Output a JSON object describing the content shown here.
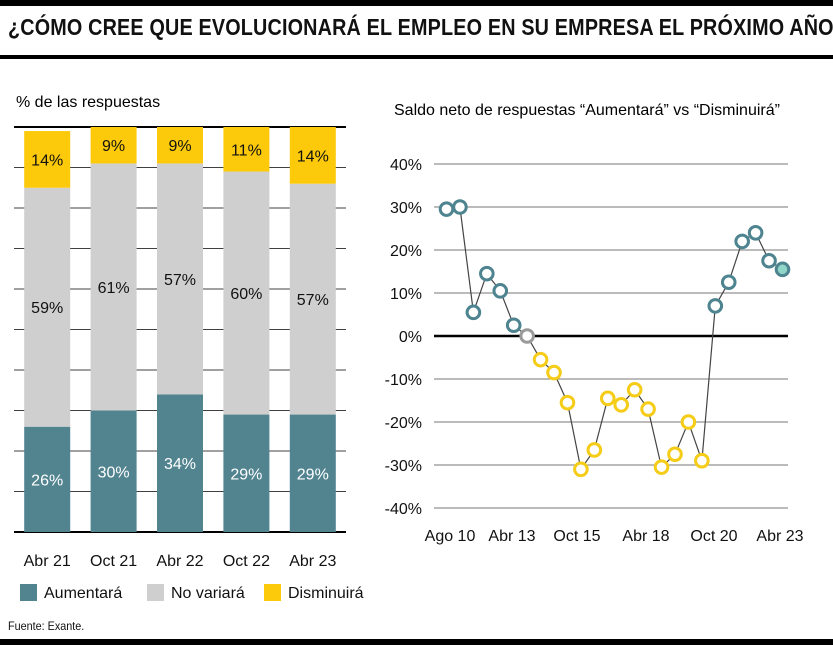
{
  "title": "¿CÓMO CREE QUE EVOLUCIONARÁ EL EMPLEO EN SU EMPRESA EL PRÓXIMO AÑO?",
  "source": "Fuente: Exante.",
  "colors": {
    "aumentara": "#528490",
    "no_variara": "#cfcfcf",
    "disminuira": "#fcca0a",
    "positive_marker": "#4e8490",
    "negative_marker": "#f5cc17",
    "neutral_marker": "#9a9a9a",
    "last_point_fill": "#8fd6c8"
  },
  "chart_data": [
    {
      "type": "bar",
      "stacked": true,
      "title": "% de las respuestas",
      "categories": [
        "Abr 21",
        "Oct 21",
        "Abr 22",
        "Oct 22",
        "Abr 23"
      ],
      "series": [
        {
          "name": "Aumentará",
          "values": [
            26,
            30,
            34,
            29,
            29
          ],
          "labels": [
            "26%",
            "30%",
            "34%",
            "29%",
            "29%"
          ]
        },
        {
          "name": "No variará",
          "values": [
            59,
            61,
            57,
            60,
            57
          ],
          "labels": [
            "59%",
            "61%",
            "57%",
            "60%",
            "57%"
          ]
        },
        {
          "name": "Disminuirá",
          "values": [
            14,
            9,
            9,
            11,
            14
          ],
          "labels": [
            "14%",
            "9%",
            "9%",
            "11%",
            "14%"
          ]
        }
      ],
      "ylim": [
        0,
        100
      ],
      "legend": [
        "Aumentará",
        "No variará",
        "Disminuirá"
      ]
    },
    {
      "type": "line",
      "title": "Saldo neto de respuestas “Aumentará” vs “Disminuirá”",
      "xlabels": [
        "Ago 10",
        "Abr 13",
        "Oct 15",
        "Abr 18",
        "Oct 20",
        "Abr 23"
      ],
      "yticks": [
        "40%",
        "30%",
        "20%",
        "10%",
        "0%",
        "-10%",
        "-20%",
        "-30%",
        "-40%"
      ],
      "ylim": [
        -40,
        40
      ],
      "values": [
        29.5,
        30,
        5.5,
        14.5,
        10.5,
        2.5,
        0,
        -5.5,
        -8.5,
        -15.5,
        -31,
        -26.5,
        -14.5,
        -16,
        -12.5,
        -17,
        -30.5,
        -27.5,
        -20,
        -29,
        7,
        12.5,
        22,
        24,
        17.5,
        15.5
      ]
    }
  ]
}
